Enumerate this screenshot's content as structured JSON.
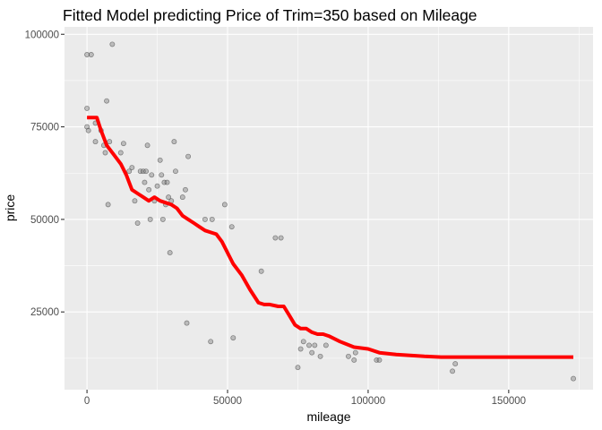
{
  "chart_data": {
    "type": "scatter",
    "title": "Fitted Model predicting Price of Trim=350 based on Mileage",
    "xlabel": "mileage",
    "ylabel": "price",
    "xlim": [
      -8000,
      180000
    ],
    "ylim": [
      4000,
      102000
    ],
    "x_ticks": [
      0,
      50000,
      100000,
      150000
    ],
    "x_tick_labels": [
      "0",
      "50000",
      "100000",
      "150000"
    ],
    "y_ticks": [
      25000,
      50000,
      75000,
      100000
    ],
    "y_tick_labels": [
      "25000",
      "50000",
      "75000",
      "100000"
    ],
    "grid": true,
    "background": "#ebebeb",
    "point_color": "#808080",
    "line_color": "#ff0000",
    "series": [
      {
        "type": "scatter",
        "points": [
          [
            0,
            94500
          ],
          [
            1500,
            94500
          ],
          [
            9000,
            97300
          ],
          [
            0,
            80000
          ],
          [
            7000,
            82000
          ],
          [
            0,
            75000
          ],
          [
            500,
            74000
          ],
          [
            3000,
            76000
          ],
          [
            5000,
            74000
          ],
          [
            3000,
            71000
          ],
          [
            6000,
            70000
          ],
          [
            8000,
            71000
          ],
          [
            6500,
            68000
          ],
          [
            7500,
            54000
          ],
          [
            12000,
            68000
          ],
          [
            13000,
            70500
          ],
          [
            15000,
            63000
          ],
          [
            16000,
            64000
          ],
          [
            17000,
            55000
          ],
          [
            18000,
            49000
          ],
          [
            19000,
            63000
          ],
          [
            20000,
            63000
          ],
          [
            20500,
            60000
          ],
          [
            21000,
            63000
          ],
          [
            21500,
            70000
          ],
          [
            22000,
            58000
          ],
          [
            22500,
            50000
          ],
          [
            23000,
            62000
          ],
          [
            24000,
            55000
          ],
          [
            25000,
            59000
          ],
          [
            26000,
            66000
          ],
          [
            26500,
            62000
          ],
          [
            27000,
            50000
          ],
          [
            27500,
            60000
          ],
          [
            28000,
            54000
          ],
          [
            28500,
            60000
          ],
          [
            29000,
            56000
          ],
          [
            29500,
            41000
          ],
          [
            30000,
            55000
          ],
          [
            31000,
            71000
          ],
          [
            31500,
            63000
          ],
          [
            34000,
            56000
          ],
          [
            35000,
            58000
          ],
          [
            35500,
            22000
          ],
          [
            36000,
            67000
          ],
          [
            42000,
            50000
          ],
          [
            44000,
            17000
          ],
          [
            44500,
            50000
          ],
          [
            49000,
            54000
          ],
          [
            51500,
            48000
          ],
          [
            52000,
            18000
          ],
          [
            62000,
            36000
          ],
          [
            67000,
            45000
          ],
          [
            69000,
            45000
          ],
          [
            75000,
            10000
          ],
          [
            76000,
            15000
          ],
          [
            77000,
            17000
          ],
          [
            79000,
            16000
          ],
          [
            80000,
            14000
          ],
          [
            81000,
            16000
          ],
          [
            83000,
            13000
          ],
          [
            85000,
            16000
          ],
          [
            93000,
            13000
          ],
          [
            95000,
            12000
          ],
          [
            95500,
            14000
          ],
          [
            103000,
            12000
          ],
          [
            104000,
            12000
          ],
          [
            130000,
            9000
          ],
          [
            131000,
            11000
          ],
          [
            173000,
            7000
          ]
        ]
      },
      {
        "type": "line",
        "points": [
          [
            0,
            77500
          ],
          [
            3500,
            77500
          ],
          [
            5000,
            74000
          ],
          [
            7000,
            70000
          ],
          [
            10000,
            67000
          ],
          [
            12000,
            65000
          ],
          [
            14000,
            62000
          ],
          [
            16000,
            58000
          ],
          [
            18000,
            57000
          ],
          [
            20000,
            56000
          ],
          [
            22000,
            55000
          ],
          [
            24000,
            56000
          ],
          [
            26000,
            55000
          ],
          [
            28000,
            54500
          ],
          [
            30000,
            54000
          ],
          [
            32000,
            53000
          ],
          [
            34000,
            51000
          ],
          [
            36000,
            50000
          ],
          [
            38000,
            49000
          ],
          [
            40000,
            48000
          ],
          [
            42000,
            47000
          ],
          [
            44000,
            46500
          ],
          [
            46000,
            46000
          ],
          [
            48000,
            44000
          ],
          [
            50000,
            41000
          ],
          [
            52000,
            38000
          ],
          [
            55000,
            35000
          ],
          [
            58000,
            31000
          ],
          [
            61000,
            27500
          ],
          [
            63000,
            27000
          ],
          [
            65000,
            27000
          ],
          [
            68000,
            26500
          ],
          [
            70000,
            26500
          ],
          [
            72000,
            24000
          ],
          [
            74000,
            21500
          ],
          [
            76000,
            20500
          ],
          [
            78000,
            20500
          ],
          [
            80000,
            19500
          ],
          [
            82000,
            19000
          ],
          [
            84000,
            19000
          ],
          [
            86000,
            18500
          ],
          [
            90000,
            17000
          ],
          [
            95000,
            15500
          ],
          [
            100000,
            15000
          ],
          [
            104000,
            14000
          ],
          [
            110000,
            13500
          ],
          [
            120000,
            13000
          ],
          [
            126000,
            12800
          ],
          [
            150000,
            12800
          ],
          [
            173000,
            12800
          ]
        ]
      }
    ]
  }
}
